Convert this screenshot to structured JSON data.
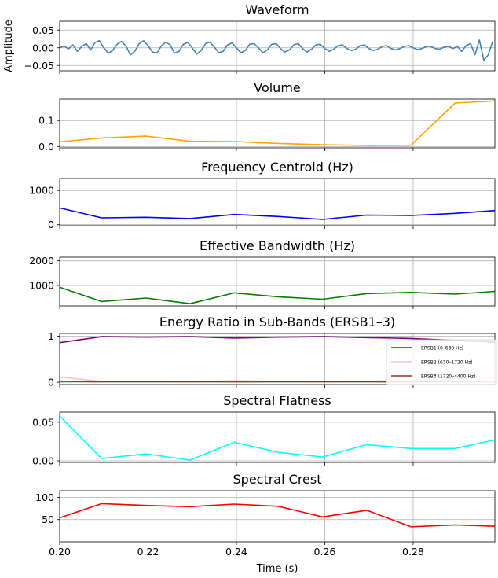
{
  "chart_data": [
    {
      "type": "line",
      "title": "Waveform",
      "ylabel": "Amplitude",
      "xlim": [
        0.2,
        0.2985
      ],
      "ylim": [
        -0.065,
        0.075
      ],
      "yticks": [
        -0.05,
        0.0,
        0.05
      ],
      "ytick_labels": [
        "−0.05",
        "0.00",
        "0.05"
      ],
      "grid": true,
      "series": [
        {
          "color": "#4682b4",
          "x": [
            0.2,
            0.201,
            0.202,
            0.203,
            0.204,
            0.205,
            0.206,
            0.207,
            0.208,
            0.209,
            0.21,
            0.211,
            0.212,
            0.213,
            0.214,
            0.215,
            0.216,
            0.217,
            0.218,
            0.219,
            0.22,
            0.221,
            0.222,
            0.223,
            0.224,
            0.225,
            0.226,
            0.227,
            0.228,
            0.229,
            0.23,
            0.231,
            0.232,
            0.233,
            0.234,
            0.235,
            0.236,
            0.237,
            0.238,
            0.239,
            0.24,
            0.241,
            0.242,
            0.243,
            0.244,
            0.245,
            0.246,
            0.247,
            0.248,
            0.249,
            0.25,
            0.251,
            0.252,
            0.253,
            0.254,
            0.255,
            0.256,
            0.257,
            0.258,
            0.259,
            0.26,
            0.261,
            0.262,
            0.263,
            0.264,
            0.265,
            0.266,
            0.267,
            0.268,
            0.269,
            0.27,
            0.271,
            0.272,
            0.273,
            0.274,
            0.275,
            0.276,
            0.277,
            0.278,
            0.279,
            0.28,
            0.281,
            0.282,
            0.283,
            0.284,
            0.285,
            0.286,
            0.287,
            0.288,
            0.289,
            0.29,
            0.291,
            0.292,
            0.293,
            0.294,
            0.295,
            0.296,
            0.297,
            0.298
          ],
          "y": [
            0.0,
            0.005,
            -0.003,
            0.008,
            -0.01,
            0.004,
            0.012,
            -0.006,
            0.015,
            0.02,
            0.0,
            -0.015,
            -0.008,
            0.01,
            0.018,
            0.005,
            -0.02,
            -0.01,
            0.012,
            0.02,
            0.006,
            -0.012,
            -0.015,
            0.005,
            0.016,
            0.008,
            -0.015,
            -0.01,
            0.01,
            0.015,
            0.0,
            -0.018,
            -0.008,
            0.012,
            0.016,
            0.002,
            -0.014,
            -0.01,
            0.008,
            0.014,
            0.0,
            -0.014,
            -0.008,
            0.01,
            0.012,
            0.0,
            -0.014,
            -0.006,
            0.01,
            0.012,
            -0.002,
            -0.012,
            -0.006,
            0.008,
            0.012,
            -0.002,
            -0.012,
            -0.004,
            0.008,
            0.01,
            -0.002,
            -0.01,
            -0.004,
            0.006,
            0.008,
            -0.002,
            -0.008,
            -0.004,
            0.006,
            0.008,
            -0.002,
            -0.008,
            -0.004,
            0.004,
            0.006,
            -0.002,
            -0.006,
            -0.002,
            0.004,
            0.006,
            0.0,
            -0.005,
            -0.002,
            0.004,
            0.004,
            -0.002,
            -0.004,
            0.002,
            0.004,
            -0.002,
            0.004,
            -0.01,
            0.006,
            0.012,
            -0.02,
            0.022,
            -0.035,
            -0.02,
            0.018
          ]
        }
      ]
    },
    {
      "type": "line",
      "title": "Volume",
      "xlim": [
        0.2,
        0.2985
      ],
      "ylim": [
        -0.005,
        0.182
      ],
      "yticks": [
        0.0,
        0.1
      ],
      "ytick_labels": [
        "0.0",
        "0.1"
      ],
      "grid": true,
      "series": [
        {
          "color": "#ffa500",
          "x": [
            0.2,
            0.2095,
            0.2195,
            0.2295,
            0.2395,
            0.2495,
            0.2595,
            0.2695,
            0.2795,
            0.2895,
            0.2985
          ],
          "y": [
            0.018,
            0.033,
            0.04,
            0.02,
            0.019,
            0.012,
            0.007,
            0.004,
            0.005,
            0.167,
            0.175
          ]
        }
      ]
    },
    {
      "type": "line",
      "title": "Frequency Centroid (Hz)",
      "xlim": [
        0.2,
        0.2985
      ],
      "ylim": [
        -30,
        1350
      ],
      "yticks": [
        0,
        1000
      ],
      "ytick_labels": [
        "0",
        "1000"
      ],
      "grid": true,
      "series": [
        {
          "color": "#0000ff",
          "x": [
            0.2,
            0.2095,
            0.2195,
            0.2295,
            0.2395,
            0.2495,
            0.2595,
            0.2695,
            0.2795,
            0.2895,
            0.2985
          ],
          "y": [
            490,
            200,
            215,
            180,
            300,
            240,
            155,
            280,
            270,
            330,
            415
          ]
        }
      ]
    },
    {
      "type": "line",
      "title": "Effective Bandwidth (Hz)",
      "xlim": [
        0.2,
        0.2985
      ],
      "ylim": [
        170,
        2150
      ],
      "yticks": [
        1000,
        2000
      ],
      "ytick_labels": [
        "1000",
        "2000"
      ],
      "grid": true,
      "series": [
        {
          "color": "#008000",
          "x": [
            0.2,
            0.2095,
            0.2195,
            0.2295,
            0.2395,
            0.2495,
            0.2595,
            0.2695,
            0.2795,
            0.2895,
            0.2985
          ],
          "y": [
            930,
            350,
            490,
            260,
            700,
            540,
            440,
            670,
            720,
            650,
            760
          ]
        }
      ]
    },
    {
      "type": "line",
      "title": "Energy Ratio in Sub-Bands (ERSB1–3)",
      "xlim": [
        0.2,
        0.2985
      ],
      "ylim": [
        -0.05,
        1.06
      ],
      "yticks": [
        0,
        1
      ],
      "ytick_labels": [
        "0",
        "1"
      ],
      "grid": true,
      "legend": "right",
      "series": [
        {
          "name": "ERSB1 (0–630 Hz)",
          "color": "#800080",
          "x": [
            0.2,
            0.2095,
            0.2195,
            0.2295,
            0.2395,
            0.2495,
            0.2595,
            0.2695,
            0.2795,
            0.2895,
            0.2985
          ],
          "y": [
            0.86,
            0.99,
            0.98,
            0.99,
            0.96,
            0.98,
            0.99,
            0.97,
            0.95,
            0.91,
            0.87
          ]
        },
        {
          "name": "ERSB2 (630–1720 Hz)",
          "color": "#ffc0cb",
          "x": [
            0.2,
            0.2095,
            0.2195,
            0.2295,
            0.2395,
            0.2495,
            0.2595,
            0.2695,
            0.2795,
            0.2895,
            0.2985
          ],
          "y": [
            0.11,
            0.02,
            0.02,
            0.01,
            0.03,
            0.02,
            0.01,
            0.02,
            0.04,
            0.07,
            0.1
          ]
        },
        {
          "name": "ERSB3 (1720–4400 Hz)",
          "color": "#a52a2a",
          "x": [
            0.2,
            0.2095,
            0.2195,
            0.2295,
            0.2395,
            0.2495,
            0.2595,
            0.2695,
            0.2795,
            0.2895,
            0.2985
          ],
          "y": [
            0.02,
            0.01,
            0.01,
            0.01,
            0.01,
            0.01,
            0.01,
            0.01,
            0.01,
            0.02,
            0.02
          ]
        }
      ]
    },
    {
      "type": "line",
      "title": "Spectral Flatness",
      "xlim": [
        0.2,
        0.2985
      ],
      "ylim": [
        -0.002,
        0.063
      ],
      "yticks": [
        0.0,
        0.05
      ],
      "ytick_labels": [
        "0.00",
        "0.05"
      ],
      "grid": true,
      "series": [
        {
          "color": "#00ffff",
          "x": [
            0.2,
            0.2095,
            0.2195,
            0.2295,
            0.2395,
            0.2495,
            0.2595,
            0.2695,
            0.2795,
            0.2895,
            0.2985
          ],
          "y": [
            0.058,
            0.003,
            0.009,
            0.001,
            0.024,
            0.011,
            0.005,
            0.021,
            0.016,
            0.016,
            0.027
          ]
        }
      ]
    },
    {
      "type": "line",
      "title": "Spectral Crest",
      "xlabel": "Time (s)",
      "xlim": [
        0.2,
        0.2985
      ],
      "ylim": [
        0,
        115
      ],
      "yticks": [
        50,
        100
      ],
      "ytick_labels": [
        "50",
        "100"
      ],
      "xticks": [
        0.2,
        0.22,
        0.24,
        0.26,
        0.28
      ],
      "xtick_labels": [
        "0.20",
        "0.22",
        "0.24",
        "0.26",
        "0.28"
      ],
      "grid": true,
      "series": [
        {
          "color": "#ff0000",
          "x": [
            0.2,
            0.2095,
            0.2195,
            0.2295,
            0.2395,
            0.2495,
            0.2595,
            0.2695,
            0.2795,
            0.2895,
            0.2985
          ],
          "y": [
            54,
            86,
            82,
            79,
            85,
            80,
            56,
            71,
            34,
            38,
            35
          ]
        }
      ]
    }
  ]
}
